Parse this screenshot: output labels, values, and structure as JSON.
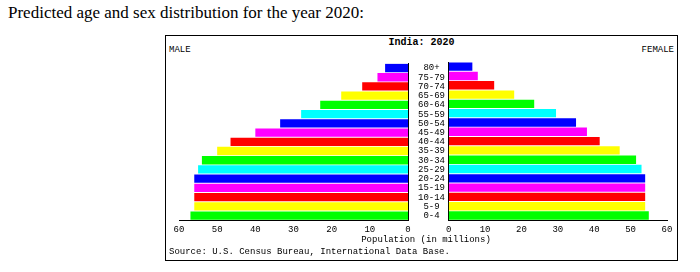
{
  "heading": "Predicted age and sex distribution for the year 2020:",
  "chart_data": {
    "type": "bar",
    "orientation": "horizontal",
    "title": "India: 2020",
    "xlabel": "Population (in millions)",
    "source": "Source: U.S. Census Bureau, International Data Base.",
    "categories": [
      "80+",
      "75-79",
      "70-74",
      "65-69",
      "60-64",
      "55-59",
      "50-54",
      "45-49",
      "40-44",
      "35-39",
      "30-34",
      "25-29",
      "20-24",
      "15-19",
      "10-14",
      "5-9",
      "0-4"
    ],
    "colors": [
      "#0000ff",
      "#ff00ff",
      "#ff0000",
      "#ffff00",
      "#00ff00",
      "#00ffff",
      "#0000ff",
      "#ff00ff",
      "#ff0000",
      "#ffff00",
      "#00ff00",
      "#00ffff",
      "#0000ff",
      "#ff00ff",
      "#ff0000",
      "#ffff00",
      "#00ff00"
    ],
    "series": [
      {
        "name": "MALE",
        "values": [
          6,
          8,
          12,
          17.5,
          23,
          28,
          33.5,
          40,
          46.5,
          50,
          54,
          55,
          56,
          56,
          56,
          56,
          57
        ]
      },
      {
        "name": "FEMALE",
        "values": [
          6.5,
          8,
          12.5,
          18,
          23.5,
          29.5,
          35,
          38,
          41.5,
          47,
          51.5,
          53,
          54,
          54,
          54,
          54,
          55
        ]
      }
    ],
    "xlim": [
      0,
      60
    ],
    "xticks": [
      0,
      10,
      20,
      30,
      40,
      50,
      60
    ],
    "grid": false
  }
}
